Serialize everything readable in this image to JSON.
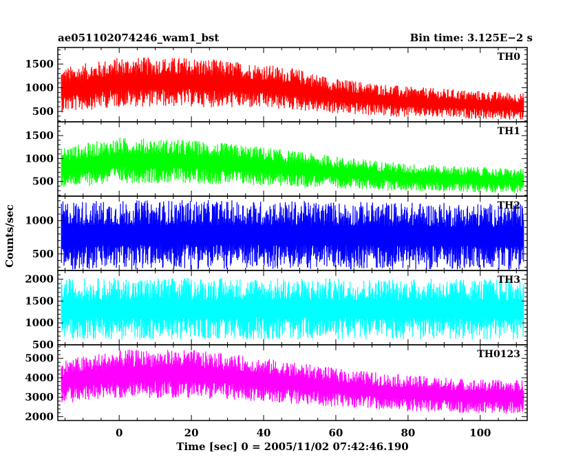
{
  "title_left": "ae051102074246_wam1_bst",
  "title_right": "Bin time: 3.125E−2 s",
  "ylabel": "Counts/sec",
  "xlabel": "Time [sec] 0 = 2005/11/02 07:42:46.190",
  "chart_data": {
    "type": "line",
    "x_range": [
      -17,
      113
    ],
    "x_data_range": [
      -16,
      112
    ],
    "x_ticks": [
      0,
      20,
      40,
      60,
      80,
      100
    ],
    "x_tick_labels": [
      "0",
      "20",
      "40",
      "60",
      "80",
      "100"
    ],
    "bin_time_s": 0.03125,
    "panels": [
      {
        "name": "TH0",
        "color": "#ff0000",
        "ylim": [
          280,
          1850
        ],
        "y_ticks": [
          500,
          1000,
          1500
        ],
        "y_tick_labels": [
          "500",
          "1000",
          "1500"
        ],
        "trend_t": [
          -16,
          0,
          20,
          40,
          50,
          60,
          80,
          100,
          112
        ],
        "trend_mean": [
          950,
          1120,
          1120,
          1030,
          950,
          820,
          700,
          640,
          600
        ],
        "trend_halfwidth": [
          380,
          420,
          420,
          380,
          350,
          300,
          260,
          240,
          230
        ]
      },
      {
        "name": "TH1",
        "color": "#00ff00",
        "ylim": [
          180,
          1800
        ],
        "y_ticks": [
          500,
          1000,
          1500
        ],
        "y_tick_labels": [
          "500",
          "1000",
          "1500"
        ],
        "trend_t": [
          -16,
          0,
          20,
          40,
          60,
          80,
          100,
          112
        ],
        "trend_mean": [
          800,
          960,
          930,
          830,
          700,
          590,
          540,
          510
        ],
        "trend_halfwidth": [
          360,
          400,
          380,
          340,
          280,
          240,
          220,
          210
        ]
      },
      {
        "name": "TH2",
        "color": "#0000ff",
        "ylim": [
          250,
          1370
        ],
        "y_ticks": [
          500,
          1000
        ],
        "y_tick_labels": [
          "500",
          "1000"
        ],
        "trend_t": [
          -16,
          20,
          60,
          112
        ],
        "trend_mean": [
          780,
          790,
          780,
          760
        ],
        "trend_halfwidth": [
          420,
          420,
          410,
          400
        ]
      },
      {
        "name": "TH3",
        "color": "#00ffff",
        "ylim": [
          500,
          2200
        ],
        "y_ticks": [
          500,
          1000,
          1500,
          2000
        ],
        "y_tick_labels": [
          "500",
          "1000",
          "1500",
          "2000"
        ],
        "trend_t": [
          -16,
          20,
          60,
          112
        ],
        "trend_mean": [
          1320,
          1330,
          1320,
          1310
        ],
        "trend_halfwidth": [
          560,
          570,
          560,
          560
        ]
      },
      {
        "name": "TH0123",
        "color": "#ff00ff",
        "ylim": [
          1800,
          5700
        ],
        "y_ticks": [
          2000,
          3000,
          4000,
          5000
        ],
        "y_tick_labels": [
          "2000",
          "3000",
          "4000",
          "5000"
        ],
        "trend_t": [
          -16,
          0,
          20,
          40,
          60,
          80,
          100,
          112
        ],
        "trend_mean": [
          3800,
          4200,
          4200,
          3900,
          3500,
          3200,
          3050,
          3000
        ],
        "trend_halfwidth": [
          900,
          1000,
          1000,
          900,
          800,
          750,
          700,
          700
        ]
      }
    ]
  }
}
